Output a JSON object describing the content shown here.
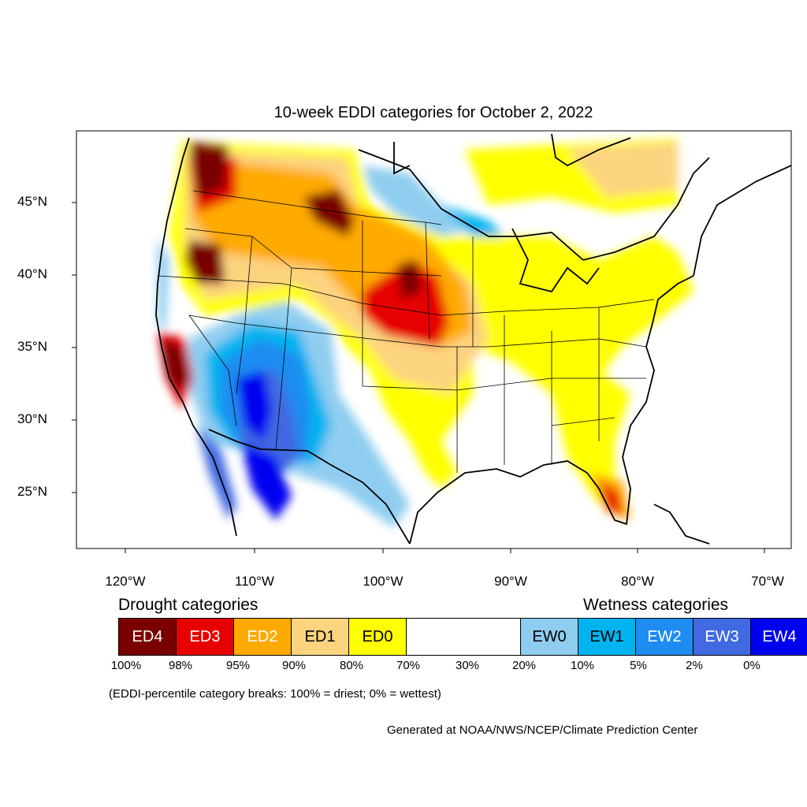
{
  "title": "10-week EDDI categories for October 2, 2022",
  "lat_labels": [
    "45°N",
    "40°N",
    "35°N",
    "30°N",
    "25°N"
  ],
  "lon_labels": [
    "120°W",
    "110°W",
    "100°W",
    "90°W",
    "80°W",
    "70°W"
  ],
  "drought_heading": "Drought categories",
  "wetness_heading": "Wetness categories",
  "legend": [
    {
      "label": "ED4",
      "color": "#7a0000",
      "text_color": "#ffffff"
    },
    {
      "label": "ED3",
      "color": "#e60000",
      "text_color": "#ffffff"
    },
    {
      "label": "ED2",
      "color": "#ffaa00",
      "text_color": "#ffffff"
    },
    {
      "label": "ED1",
      "color": "#fcd37f",
      "text_color": "#000000"
    },
    {
      "label": "ED0",
      "color": "#ffff00",
      "text_color": "#000000"
    },
    {
      "label": "",
      "color": "#ffffff",
      "text_color": "#000000"
    },
    {
      "label": "EW0",
      "color": "#8fcdf0",
      "text_color": "#000000"
    },
    {
      "label": "EW1",
      "color": "#00b4f0",
      "text_color": "#000000"
    },
    {
      "label": "EW2",
      "color": "#1e8cf0",
      "text_color": "#ffffff"
    },
    {
      "label": "EW3",
      "color": "#4169e1",
      "text_color": "#ffffff"
    },
    {
      "label": "EW4",
      "color": "#0000f0",
      "text_color": "#ffffff"
    }
  ],
  "percent_breaks": [
    "100%",
    "98%",
    "95%",
    "90%",
    "80%",
    "70%",
    "30%",
    "20%",
    "10%",
    "5%",
    "2%",
    "0%"
  ],
  "note": "(EDDI-percentile category breaks: 100% = driest; 0% = wettest)",
  "credit": "Generated at NOAA/NWS/NCEP/Climate Prediction Center"
}
